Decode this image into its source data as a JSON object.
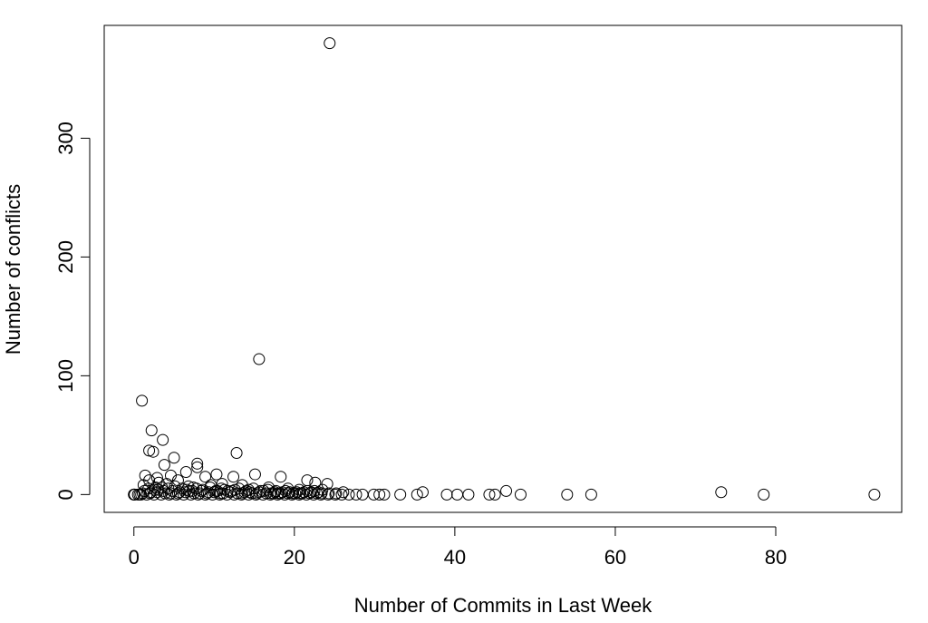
{
  "chart_data": {
    "type": "scatter",
    "title": "",
    "xlabel": "Number of Commits in Last Week",
    "ylabel": "Number of conflicts",
    "xlim": [
      -3.7,
      95.7
    ],
    "ylim": [
      -15,
      395
    ],
    "x_ticks": [
      0,
      20,
      40,
      60,
      80
    ],
    "y_ticks": [
      0,
      100,
      200,
      300
    ],
    "x_tick_labels": [
      "0",
      "20",
      "40",
      "60",
      "80"
    ],
    "y_tick_labels": [
      "0",
      "100",
      "200",
      "300"
    ],
    "grid": false,
    "legend": "none",
    "marker": "open-circle",
    "colors": {
      "marker": "#000000",
      "axis": "#000000",
      "background": "#ffffff"
    },
    "points": [
      [
        24.4,
        380
      ],
      [
        15.6,
        114
      ],
      [
        1.0,
        79
      ],
      [
        2.2,
        54
      ],
      [
        3.6,
        46
      ],
      [
        1.9,
        37
      ],
      [
        2.4,
        36
      ],
      [
        12.8,
        35
      ],
      [
        5.0,
        31
      ],
      [
        3.8,
        25
      ],
      [
        7.9,
        26
      ],
      [
        7.9,
        23
      ],
      [
        6.5,
        19
      ],
      [
        10.3,
        17
      ],
      [
        15.1,
        17
      ],
      [
        1.4,
        16
      ],
      [
        4.6,
        16
      ],
      [
        12.4,
        15
      ],
      [
        18.3,
        15
      ],
      [
        8.9,
        15
      ],
      [
        21.6,
        12
      ],
      [
        2.9,
        14
      ],
      [
        1.9,
        12
      ],
      [
        22.6,
        10
      ],
      [
        24.1,
        9
      ],
      [
        46.4,
        3
      ],
      [
        73.2,
        2
      ],
      [
        36.0,
        2
      ],
      [
        3.1,
        10
      ],
      [
        5.5,
        12
      ],
      [
        9.6,
        8
      ],
      [
        11.0,
        9
      ],
      [
        13.5,
        8
      ],
      [
        16.8,
        6
      ],
      [
        19.2,
        5
      ],
      [
        20.6,
        4
      ],
      [
        6.8,
        7
      ],
      [
        4.1,
        9
      ],
      [
        1.2,
        8
      ],
      [
        2.7,
        6
      ],
      [
        7.4,
        6
      ],
      [
        10.9,
        5
      ],
      [
        14.3,
        4
      ],
      [
        17.7,
        3
      ],
      [
        23.5,
        4
      ],
      [
        26.1,
        2
      ],
      [
        0.0,
        0
      ],
      [
        0.9,
        0
      ],
      [
        1.6,
        0
      ],
      [
        2.5,
        0
      ],
      [
        3.4,
        0
      ],
      [
        4.4,
        0
      ],
      [
        5.3,
        0
      ],
      [
        6.2,
        0
      ],
      [
        7.1,
        0
      ],
      [
        8.0,
        0
      ],
      [
        8.9,
        0
      ],
      [
        9.8,
        0
      ],
      [
        10.7,
        0
      ],
      [
        11.6,
        0
      ],
      [
        12.5,
        0
      ],
      [
        13.4,
        0
      ],
      [
        14.3,
        0
      ],
      [
        15.2,
        0
      ],
      [
        16.1,
        0
      ],
      [
        17.0,
        0
      ],
      [
        17.9,
        0
      ],
      [
        18.8,
        0
      ],
      [
        19.7,
        0
      ],
      [
        20.6,
        0
      ],
      [
        21.5,
        0
      ],
      [
        22.4,
        0
      ],
      [
        23.3,
        0
      ],
      [
        24.2,
        0
      ],
      [
        25.1,
        0
      ],
      [
        25.9,
        0
      ],
      [
        26.8,
        0
      ],
      [
        27.7,
        0
      ],
      [
        28.5,
        0
      ],
      [
        29.9,
        0
      ],
      [
        30.6,
        0
      ],
      [
        31.2,
        0
      ],
      [
        33.2,
        0
      ],
      [
        35.3,
        0
      ],
      [
        39.0,
        0
      ],
      [
        40.3,
        0
      ],
      [
        41.7,
        0
      ],
      [
        44.3,
        0
      ],
      [
        45.0,
        0
      ],
      [
        48.2,
        0
      ],
      [
        54.0,
        0
      ],
      [
        57.0,
        0
      ],
      [
        78.5,
        0
      ],
      [
        92.3,
        0
      ],
      [
        1.3,
        3
      ],
      [
        2.1,
        2
      ],
      [
        3.0,
        4
      ],
      [
        3.9,
        1
      ],
      [
        4.8,
        3
      ],
      [
        5.7,
        2
      ],
      [
        6.6,
        4
      ],
      [
        7.5,
        1
      ],
      [
        8.4,
        3
      ],
      [
        9.3,
        2
      ],
      [
        10.2,
        3
      ],
      [
        11.1,
        1
      ],
      [
        12.0,
        2
      ],
      [
        12.9,
        1
      ],
      [
        13.8,
        2
      ],
      [
        14.7,
        1
      ],
      [
        15.6,
        2
      ],
      [
        16.5,
        1
      ],
      [
        17.4,
        1
      ],
      [
        18.3,
        1
      ],
      [
        19.2,
        1
      ],
      [
        20.1,
        1
      ],
      [
        21.0,
        1
      ],
      [
        21.9,
        1
      ],
      [
        22.8,
        1
      ],
      [
        1.8,
        5
      ],
      [
        2.6,
        4
      ],
      [
        3.5,
        6
      ],
      [
        4.3,
        5
      ],
      [
        5.1,
        7
      ],
      [
        6.0,
        5
      ],
      [
        6.9,
        3
      ],
      [
        7.8,
        5
      ],
      [
        8.6,
        4
      ],
      [
        9.5,
        6
      ],
      [
        10.4,
        3
      ],
      [
        11.3,
        4
      ],
      [
        12.2,
        3
      ],
      [
        13.1,
        5
      ],
      [
        14.0,
        3
      ],
      [
        14.9,
        5
      ],
      [
        15.8,
        3
      ],
      [
        16.7,
        4
      ],
      [
        17.6,
        2
      ],
      [
        18.5,
        2
      ],
      [
        19.4,
        2
      ],
      [
        20.3,
        2
      ],
      [
        21.2,
        2
      ],
      [
        22.1,
        2
      ],
      [
        23.0,
        2
      ],
      [
        1.1,
        1
      ],
      [
        2.0,
        1
      ],
      [
        2.9,
        2
      ],
      [
        3.7,
        3
      ],
      [
        4.6,
        1
      ],
      [
        5.5,
        1
      ],
      [
        6.4,
        2
      ],
      [
        7.3,
        3
      ],
      [
        8.2,
        1
      ],
      [
        9.1,
        1
      ],
      [
        10.0,
        2
      ],
      [
        10.8,
        1
      ],
      [
        11.7,
        3
      ],
      [
        12.6,
        4
      ],
      [
        13.5,
        1
      ],
      [
        14.4,
        2
      ],
      [
        15.3,
        1
      ],
      [
        16.2,
        3
      ],
      [
        17.1,
        1
      ],
      [
        18.0,
        1
      ],
      [
        18.9,
        3
      ],
      [
        19.8,
        1
      ],
      [
        20.7,
        1
      ],
      [
        21.6,
        3
      ],
      [
        22.5,
        3
      ],
      [
        23.4,
        1
      ],
      [
        24.3,
        1
      ],
      [
        25.2,
        1
      ],
      [
        0.0,
        0
      ],
      [
        0.1,
        0
      ],
      [
        0.5,
        0
      ],
      [
        0.7,
        0
      ]
    ]
  }
}
